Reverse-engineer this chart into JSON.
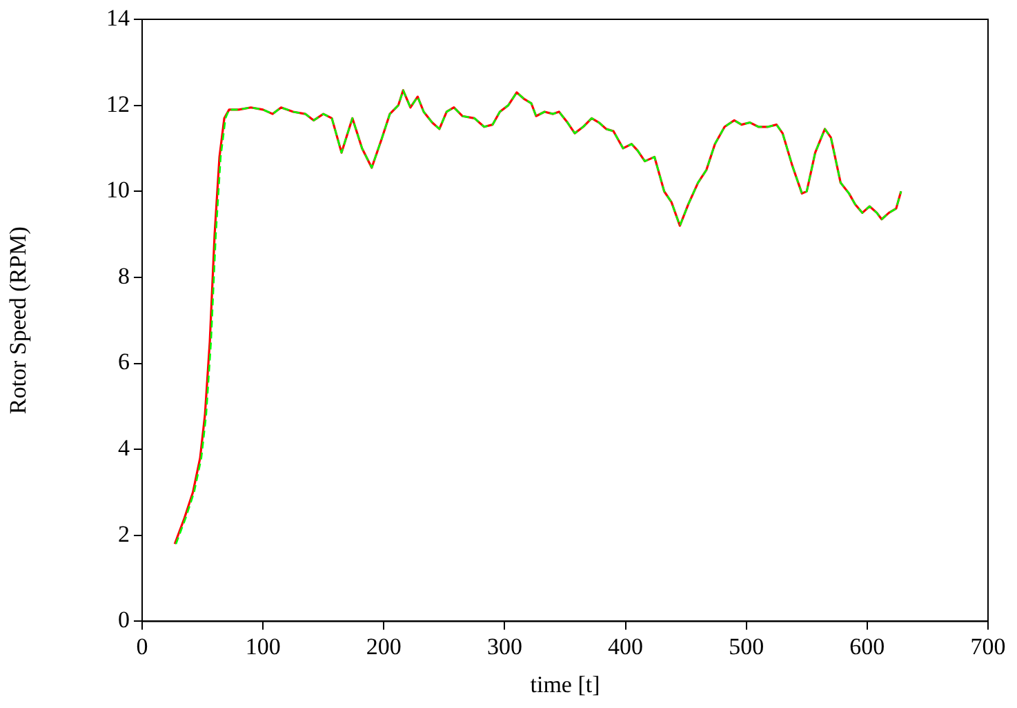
{
  "chart_data": {
    "type": "line",
    "xlabel": "time [t]",
    "ylabel": "Rotor Speed (RPM)",
    "xlim": [
      0,
      700
    ],
    "xticks": [
      0,
      100,
      200,
      300,
      400,
      500,
      600,
      700
    ],
    "ylim": [
      0,
      14
    ],
    "yticks": [
      0,
      2,
      4,
      6,
      8,
      10,
      12,
      14
    ],
    "grid": false,
    "marker": "none",
    "series": [
      {
        "color": "#ff0000",
        "line_style": "solid",
        "x": [
          27,
          35,
          42,
          48,
          52,
          56,
          60,
          64,
          68,
          72,
          80,
          90,
          100,
          108,
          115,
          125,
          135,
          142,
          150,
          157,
          165,
          174,
          182,
          190,
          198,
          205,
          212,
          216,
          222,
          228,
          233,
          240,
          246,
          252,
          258,
          265,
          275,
          283,
          290,
          296,
          303,
          310,
          316,
          322,
          326,
          333,
          340,
          345,
          352,
          358,
          365,
          372,
          378,
          384,
          390,
          398,
          405,
          410,
          416,
          424,
          432,
          438,
          445,
          452,
          460,
          467,
          474,
          482,
          490,
          496,
          503,
          510,
          518,
          525,
          530,
          538,
          546,
          550,
          557,
          565,
          570,
          578,
          585,
          590,
          596,
          602,
          608,
          612,
          618,
          624,
          628
        ],
        "values": [
          1.8,
          2.4,
          3.0,
          3.8,
          4.8,
          6.5,
          9.0,
          10.8,
          11.7,
          11.9,
          11.9,
          11.95,
          11.9,
          11.8,
          11.95,
          11.85,
          11.8,
          11.65,
          11.8,
          11.7,
          10.9,
          11.7,
          11.0,
          10.55,
          11.2,
          11.8,
          12.0,
          12.35,
          11.95,
          12.2,
          11.85,
          11.6,
          11.45,
          11.85,
          11.95,
          11.75,
          11.7,
          11.5,
          11.55,
          11.85,
          12.0,
          12.3,
          12.15,
          12.05,
          11.75,
          11.85,
          11.8,
          11.85,
          11.6,
          11.35,
          11.5,
          11.7,
          11.6,
          11.45,
          11.4,
          11.0,
          11.1,
          10.95,
          10.7,
          10.8,
          10.0,
          9.75,
          9.2,
          9.7,
          10.2,
          10.5,
          11.1,
          11.5,
          11.65,
          11.55,
          11.6,
          11.5,
          11.5,
          11.55,
          11.35,
          10.6,
          9.95,
          10.0,
          10.9,
          11.45,
          11.25,
          10.2,
          9.95,
          9.7,
          9.5,
          9.65,
          9.5,
          9.35,
          9.5,
          9.6,
          10.0
        ]
      },
      {
        "color": "#00ff00",
        "line_style": "dashed",
        "x": [
          28,
          36,
          43,
          49,
          53,
          57,
          61,
          65,
          69,
          72,
          80,
          90,
          100,
          108,
          115,
          125,
          135,
          142,
          150,
          157,
          165,
          174,
          182,
          190,
          198,
          205,
          212,
          216,
          222,
          228,
          233,
          240,
          246,
          252,
          258,
          265,
          275,
          283,
          290,
          296,
          303,
          310,
          316,
          322,
          326,
          333,
          340,
          345,
          352,
          358,
          365,
          372,
          378,
          384,
          390,
          398,
          405,
          410,
          416,
          424,
          432,
          438,
          445,
          452,
          460,
          467,
          474,
          482,
          490,
          496,
          503,
          510,
          518,
          525,
          530,
          538,
          546,
          550,
          557,
          565,
          570,
          578,
          585,
          590,
          596,
          602,
          608,
          612,
          618,
          624,
          628
        ],
        "values": [
          1.8,
          2.4,
          3.0,
          3.8,
          4.8,
          6.5,
          9.0,
          10.8,
          11.7,
          11.9,
          11.9,
          11.95,
          11.9,
          11.8,
          11.95,
          11.85,
          11.8,
          11.65,
          11.8,
          11.7,
          10.9,
          11.7,
          11.0,
          10.55,
          11.2,
          11.8,
          12.0,
          12.35,
          11.95,
          12.2,
          11.85,
          11.6,
          11.45,
          11.85,
          11.95,
          11.75,
          11.7,
          11.5,
          11.55,
          11.85,
          12.0,
          12.3,
          12.15,
          12.05,
          11.75,
          11.85,
          11.8,
          11.85,
          11.6,
          11.35,
          11.5,
          11.7,
          11.6,
          11.45,
          11.4,
          11.0,
          11.1,
          10.95,
          10.7,
          10.8,
          10.0,
          9.75,
          9.2,
          9.7,
          10.2,
          10.5,
          11.1,
          11.5,
          11.65,
          11.55,
          11.6,
          11.5,
          11.5,
          11.55,
          11.35,
          10.6,
          9.95,
          10.0,
          10.9,
          11.45,
          11.25,
          10.2,
          9.95,
          9.7,
          9.5,
          9.65,
          9.5,
          9.35,
          9.5,
          9.6,
          10.0
        ]
      }
    ]
  }
}
